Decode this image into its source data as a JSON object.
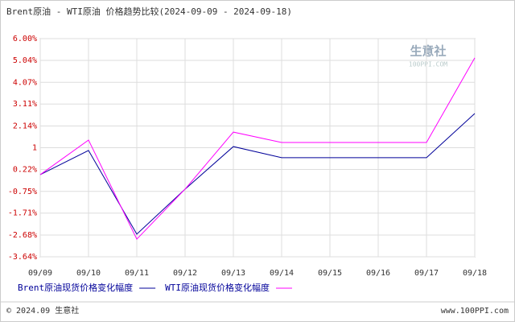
{
  "chart_data": {
    "type": "line",
    "title": "Brent原油 - WTI原油 价格趋势比较(2024-09-09 - 2024-09-18)",
    "categories": [
      "09/09",
      "09/10",
      "09/11",
      "09/12",
      "09/13",
      "09/14",
      "09/15",
      "09/16",
      "09/17",
      "09/18"
    ],
    "series": [
      {
        "name": "Brent原油现货价格变化幅度",
        "color": "#000099",
        "values": [
          -0.01,
          1.06,
          -2.64,
          -0.65,
          1.23,
          0.74,
          0.74,
          0.74,
          0.74,
          2.69
        ]
      },
      {
        "name": "WTI原油现货价格变化幅度",
        "color": "#ff00ff",
        "values": [
          -0.01,
          1.52,
          -2.86,
          -0.65,
          1.87,
          1.41,
          1.41,
          1.41,
          1.41,
          5.15
        ]
      }
    ],
    "ylim": [
      -3.64,
      6
    ],
    "yticks": [
      {
        "value": -3.64,
        "label": "-3.64%"
      },
      {
        "value": -2.68,
        "label": "-2.68%"
      },
      {
        "value": -1.71,
        "label": "-1.71%"
      },
      {
        "value": -0.75,
        "label": "-0.75%"
      },
      {
        "value": 0.22,
        "label": "0.22%"
      },
      {
        "value": 1.18,
        "label": "1"
      },
      {
        "value": 2.14,
        "label": "2.14%"
      },
      {
        "value": 3.11,
        "label": "3.11%"
      },
      {
        "value": 4.07,
        "label": "4.07%"
      },
      {
        "value": 5.04,
        "label": "5.04%"
      },
      {
        "value": 6,
        "label": "6.00%"
      }
    ],
    "grid": true,
    "watermark": [
      "生意社",
      "100PPI.COM"
    ],
    "footer": [
      "© 2024.09 生意社",
      "www.100PPI.com"
    ]
  }
}
